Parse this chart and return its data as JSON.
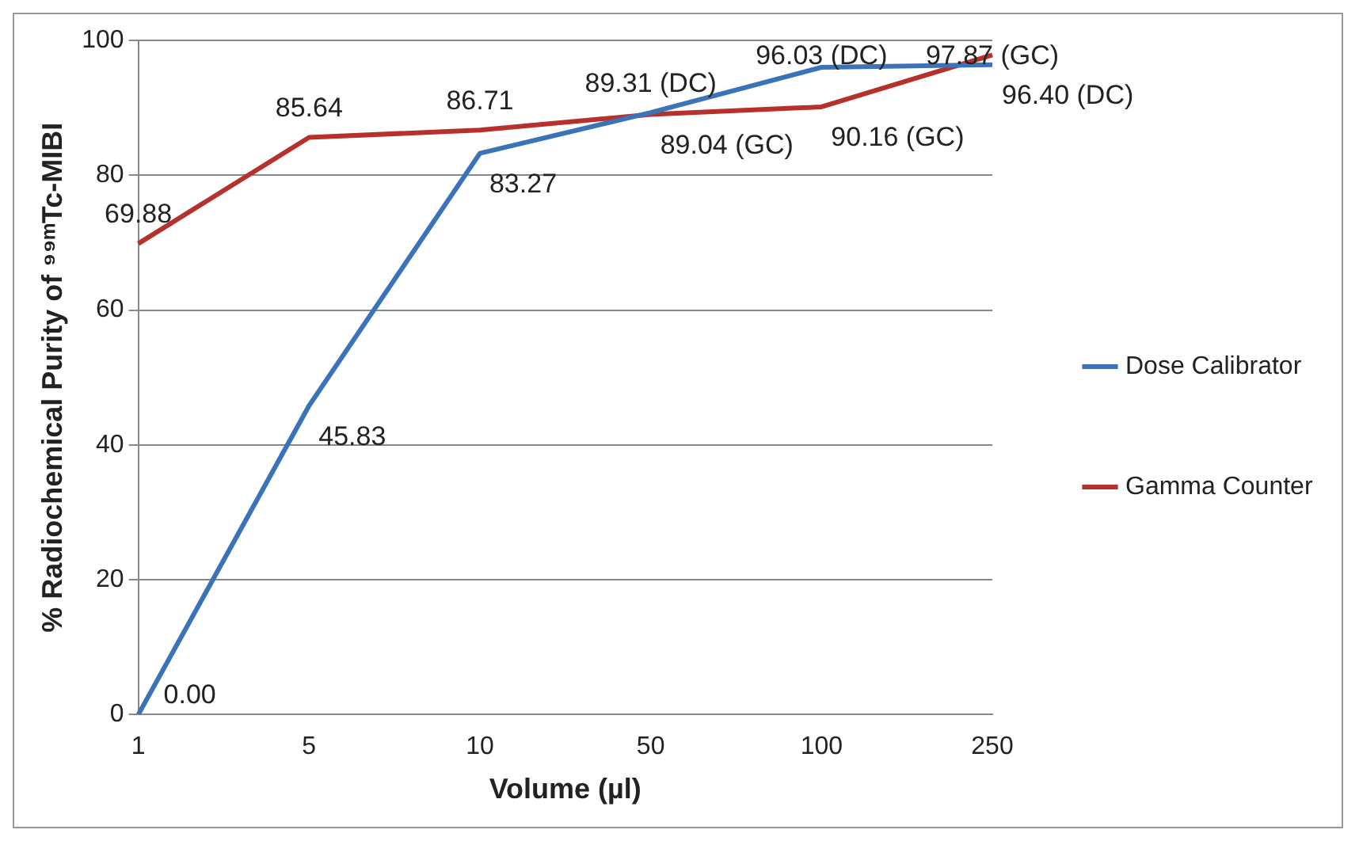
{
  "chart_data": {
    "type": "line",
    "xlabel": "Volume (µl)",
    "ylabel": "% Radiochemical Purity of ⁹⁹ᵐTc-MIBI",
    "categories": [
      "1",
      "5",
      "10",
      "50",
      "100",
      "250"
    ],
    "series": [
      {
        "name": "Dose Calibrator",
        "color": "#3b73b9",
        "values": [
          0,
          45.83,
          83.27,
          89.31,
          96.03,
          96.4
        ],
        "value_labels": [
          "0.00",
          "45.83",
          "83.27",
          "89.31 (DC)",
          "96.03 (DC)",
          "96.40 (DC)"
        ]
      },
      {
        "name": "Gamma Counter",
        "color": "#b7312c",
        "values": [
          69.88,
          85.64,
          86.71,
          89.04,
          90.16,
          97.87
        ],
        "value_labels": [
          "69.88",
          "85.64",
          "86.71",
          "89.04 (GC)",
          "90.16 (GC)",
          "97.87 (GC)"
        ]
      }
    ],
    "ylim": [
      0,
      100
    ],
    "yticks": [
      0,
      20,
      40,
      60,
      80,
      100
    ],
    "grid": "y",
    "legend": "right",
    "marker": "none",
    "line_style": "solid"
  }
}
